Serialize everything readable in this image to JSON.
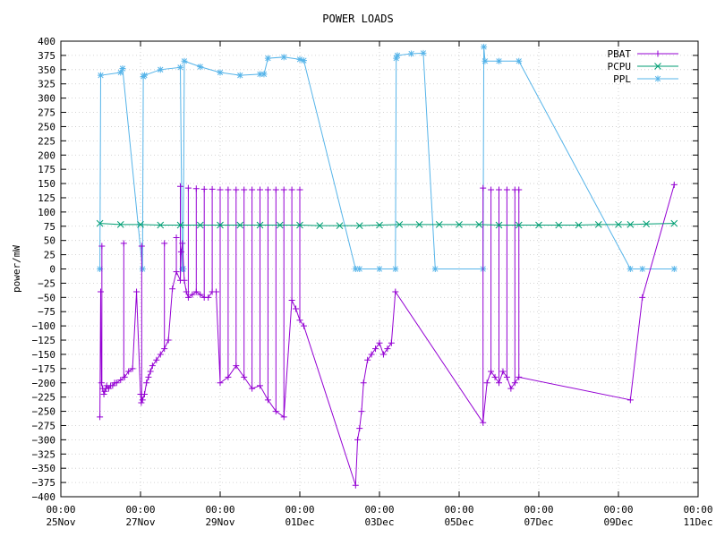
{
  "chart_data": {
    "type": "line",
    "title": "POWER LOADS",
    "xlabel": "",
    "ylabel": "power/mW",
    "ylim": [
      -400,
      400
    ],
    "yticks": [
      -400,
      -375,
      -350,
      -325,
      -300,
      -275,
      -250,
      -225,
      -200,
      -175,
      -150,
      -125,
      -100,
      -75,
      -50,
      -25,
      0,
      25,
      50,
      75,
      100,
      125,
      150,
      175,
      200,
      225,
      250,
      275,
      300,
      325,
      350,
      375,
      400
    ],
    "xlim_days": [
      0,
      16
    ],
    "xticks": [
      {
        "day": 0,
        "time": "00:00",
        "date": "25Nov"
      },
      {
        "day": 2,
        "time": "00:00",
        "date": "27Nov"
      },
      {
        "day": 4,
        "time": "00:00",
        "date": "29Nov"
      },
      {
        "day": 6,
        "time": "00:00",
        "date": "01Dec"
      },
      {
        "day": 8,
        "time": "00:00",
        "date": "03Dec"
      },
      {
        "day": 10,
        "time": "00:00",
        "date": "05Dec"
      },
      {
        "day": 12,
        "time": "00:00",
        "date": "07Dec"
      },
      {
        "day": 14,
        "time": "00:00",
        "date": "09Dec"
      },
      {
        "day": 16,
        "time": "00:00",
        "date": "11Dec"
      }
    ],
    "grid": true,
    "legend_position": "top-right",
    "series": [
      {
        "name": "PBAT",
        "color": "#9400d3",
        "marker": "plus",
        "x": [
          0.98,
          1.0,
          1.02,
          1.05,
          1.08,
          1.1,
          1.13,
          1.15,
          1.2,
          1.25,
          1.3,
          1.35,
          1.4,
          1.5,
          1.6,
          1.7,
          1.8,
          1.9,
          2.0,
          2.02,
          2.05,
          2.1,
          2.15,
          2.2,
          2.25,
          2.3,
          2.4,
          2.5,
          2.6,
          2.7,
          2.8,
          2.9,
          3.0,
          3.02,
          3.05,
          3.1,
          3.15,
          3.2,
          3.3,
          3.4,
          3.5,
          3.6,
          3.7,
          3.8,
          3.9,
          4.0,
          4.2,
          4.4,
          4.6,
          4.8,
          5.0,
          5.2,
          5.4,
          5.6,
          5.8,
          5.9,
          6.0,
          6.1,
          7.4,
          7.45,
          7.5,
          7.55,
          7.6,
          7.7,
          7.8,
          7.9,
          8.0,
          8.1,
          8.2,
          8.3,
          8.4,
          10.6,
          10.7,
          10.8,
          10.9,
          11.0,
          11.1,
          11.2,
          11.3,
          11.4,
          11.5,
          14.3,
          14.6,
          15.4
        ],
        "values": [
          -260,
          -40,
          -200,
          -210,
          -220,
          -215,
          -210,
          -205,
          -210,
          -205,
          -205,
          -200,
          -200,
          -195,
          -190,
          -180,
          -175,
          -40,
          -220,
          -235,
          -230,
          -220,
          -200,
          -190,
          -180,
          -170,
          -160,
          -150,
          -140,
          -125,
          -35,
          -5,
          -20,
          30,
          45,
          -20,
          -40,
          -50,
          -45,
          -40,
          -45,
          -50,
          -50,
          -40,
          -40,
          -200,
          -190,
          -170,
          -190,
          -210,
          -205,
          -230,
          -250,
          -260,
          -55,
          -70,
          -90,
          -100,
          -380,
          -300,
          -280,
          -250,
          -200,
          -160,
          -150,
          -140,
          -130,
          -150,
          -140,
          -130,
          -40,
          -270,
          -200,
          -180,
          -190,
          -200,
          -180,
          -190,
          -210,
          -200,
          -190,
          -230,
          -50,
          148
        ],
        "x_tops": [
          1.03,
          1.58,
          2.03,
          2.6,
          2.9,
          3.0,
          3.2,
          3.4,
          3.6,
          3.8,
          4.0,
          4.2,
          4.4,
          4.6,
          4.8,
          5.0,
          5.2,
          5.4,
          5.6,
          5.8,
          6.0,
          10.6,
          10.8,
          11.0,
          11.2,
          11.4,
          11.5
        ],
        "v_tops": [
          40,
          45,
          40,
          45,
          55,
          145,
          142,
          141,
          140,
          140,
          139,
          139,
          139,
          139,
          139,
          139,
          139,
          139,
          139,
          139,
          139,
          142,
          139,
          139,
          139,
          139,
          139
        ]
      },
      {
        "name": "PCPU",
        "color": "#009e73",
        "marker": "cross",
        "x": [
          0.98,
          1.5,
          2.0,
          2.5,
          3.0,
          3.5,
          4.0,
          4.5,
          5.0,
          5.5,
          6.0,
          6.5,
          7.0,
          7.5,
          8.0,
          8.5,
          9.0,
          9.5,
          10.0,
          10.5,
          11.0,
          11.5,
          12.0,
          12.5,
          13.0,
          13.5,
          14.0,
          14.3,
          14.7,
          15.4
        ],
        "values": [
          80,
          78,
          78,
          77,
          77,
          77,
          77,
          77,
          77,
          77,
          77,
          76,
          76,
          76,
          77,
          78,
          78,
          78,
          78,
          78,
          77,
          77,
          77,
          77,
          77,
          78,
          78,
          78,
          79,
          80
        ]
      },
      {
        "name": "PPL",
        "color": "#56b4e9",
        "marker": "star",
        "x": [
          0.98,
          1.0,
          1.5,
          1.55,
          2.05,
          2.07,
          2.1,
          2.5,
          3.0,
          3.05,
          3.07,
          3.1,
          3.5,
          4.0,
          4.5,
          5.0,
          5.1,
          5.2,
          5.6,
          6.0,
          6.1,
          7.4,
          7.5,
          8.0,
          8.4,
          8.42,
          8.45,
          8.8,
          9.1,
          9.4,
          10.6,
          10.62,
          10.65,
          11.0,
          11.5,
          14.3,
          14.6,
          15.4
        ],
        "values": [
          0,
          340,
          345,
          352,
          0,
          338,
          340,
          350,
          354,
          0,
          0,
          365,
          355,
          345,
          340,
          342,
          342,
          370,
          372,
          368,
          366,
          0,
          0,
          0,
          0,
          370,
          375,
          378,
          379,
          0,
          0,
          390,
          365,
          365,
          365,
          0,
          0,
          0
        ]
      }
    ]
  }
}
